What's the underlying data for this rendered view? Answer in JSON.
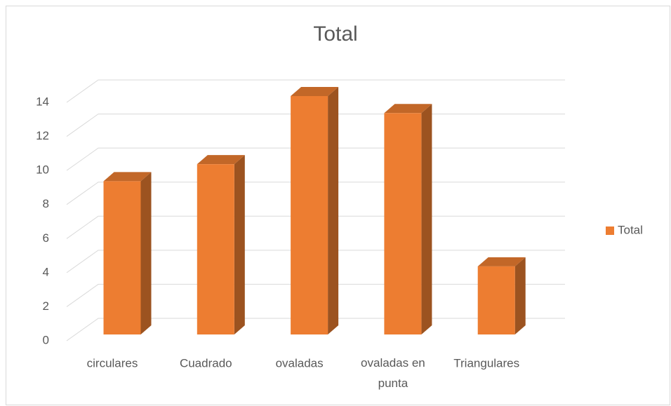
{
  "chart_data": {
    "type": "bar3d",
    "title": "Total",
    "categories": [
      "circulares",
      "Cuadrado",
      "ovaladas",
      "ovaladas en punta",
      "Triangulares"
    ],
    "series": [
      {
        "name": "Total",
        "color": "#ED7D31",
        "values": [
          9,
          10,
          14,
          13,
          4
        ]
      }
    ],
    "ylim": [
      0,
      14
    ],
    "yticks": [
      0,
      2,
      4,
      6,
      8,
      10,
      12,
      14
    ],
    "grid": true,
    "legend": "right"
  }
}
